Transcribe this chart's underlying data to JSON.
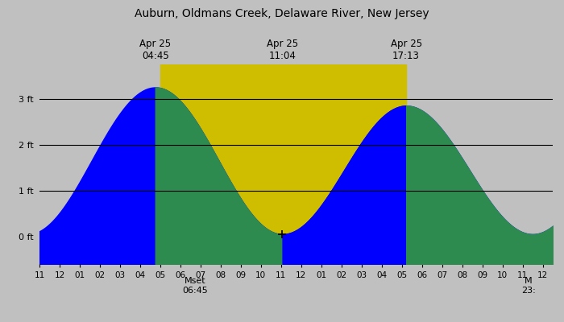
{
  "title": "Auburn, Oldmans Creek, Delaware River, New Jersey",
  "bg_gray": "#c0c0c0",
  "bg_yellow": "#cfbe00",
  "wave_blue": "#0000ff",
  "wave_green": "#2e8b50",
  "high1_hour": 4.75,
  "low1_hour": 11.067,
  "high2_hour": 17.217,
  "low2_hour": 23.5,
  "tide_high1": 3.25,
  "tide_low1": 0.05,
  "tide_high2": 2.85,
  "tide_low2": 0.05,
  "prev_low_hour": -1.58,
  "prev_low_val": 0.05,
  "next_high_hour": 29.65,
  "next_high_val": 2.85,
  "x_display_min": -1.0,
  "x_display_max": 24.5,
  "y_plot_min": -0.6,
  "y_plot_max": 3.75,
  "day_start": 5.0,
  "day_end": 17.217,
  "moonset_x": 6.75,
  "moonset_label": "Mset\n06:45",
  "moonrise_x": 23.3,
  "moonrise_label": "M\n23:",
  "ytick_positions": [
    0,
    1,
    2,
    3
  ],
  "ytick_labels": [
    "0 ft",
    "1 ft",
    "2 ft",
    "3 ft"
  ],
  "hline_y": [
    1,
    2,
    3
  ],
  "top_labels": [
    {
      "x": 4.75,
      "text": "Apr 25\n04:45"
    },
    {
      "x": 11.067,
      "text": "Apr 25\n11:04"
    },
    {
      "x": 17.217,
      "text": "Apr 25\n17:13"
    }
  ]
}
